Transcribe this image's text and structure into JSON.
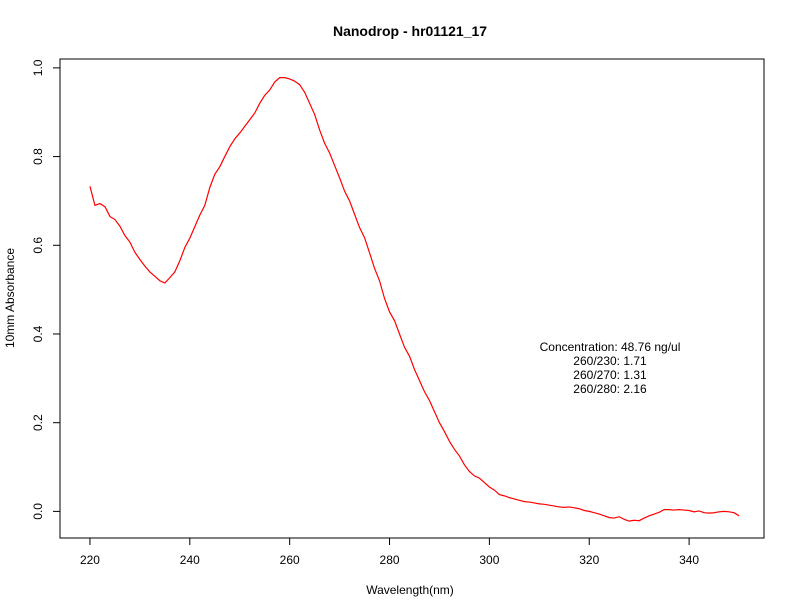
{
  "chart_data": {
    "type": "line",
    "title": "Nanodrop - hr01121_17",
    "xlabel": "Wavelength(nm)",
    "ylabel": "10mm Absorbance",
    "xlim": [
      214,
      355
    ],
    "ylim": [
      -0.06,
      1.02
    ],
    "x_ticks": [
      220,
      240,
      260,
      280,
      300,
      320,
      340
    ],
    "y_ticks": [
      0.0,
      0.2,
      0.4,
      0.6,
      0.8,
      1.0
    ],
    "x_tick_labels": [
      "220",
      "240",
      "260",
      "280",
      "300",
      "320",
      "340"
    ],
    "y_tick_labels": [
      "0.0",
      "0.2",
      "0.4",
      "0.6",
      "0.8",
      "1.0"
    ],
    "grid": false,
    "series": [
      {
        "color": "#ff0000",
        "x": [
          220,
          221,
          222,
          223,
          224,
          225,
          226,
          227,
          228,
          229,
          230,
          231,
          232,
          233,
          234,
          235,
          236,
          237,
          238,
          239,
          240,
          241,
          242,
          243,
          244,
          245,
          246,
          247,
          248,
          249,
          250,
          251,
          252,
          253,
          254,
          255,
          256,
          257,
          258,
          259,
          260,
          261,
          262,
          263,
          264,
          265,
          266,
          267,
          268,
          269,
          270,
          271,
          272,
          273,
          274,
          275,
          276,
          277,
          278,
          279,
          280,
          281,
          282,
          283,
          284,
          285,
          286,
          287,
          288,
          289,
          290,
          291,
          292,
          293,
          294,
          295,
          296,
          297,
          298,
          299,
          300,
          301,
          302,
          303,
          304,
          305,
          306,
          307,
          308,
          309,
          310,
          311,
          312,
          313,
          314,
          315,
          316,
          317,
          318,
          319,
          320,
          321,
          322,
          323,
          324,
          325,
          326,
          327,
          328,
          329,
          330,
          331,
          332,
          333,
          334,
          335,
          336,
          337,
          338,
          339,
          340,
          341,
          342,
          343,
          344,
          345,
          346,
          347,
          348,
          349,
          350
        ],
        "values": [
          0.733,
          0.69,
          0.694,
          0.687,
          0.665,
          0.658,
          0.643,
          0.622,
          0.607,
          0.584,
          0.568,
          0.553,
          0.54,
          0.53,
          0.52,
          0.515,
          0.527,
          0.54,
          0.565,
          0.595,
          0.616,
          0.642,
          0.668,
          0.69,
          0.73,
          0.76,
          0.777,
          0.8,
          0.822,
          0.84,
          0.853,
          0.868,
          0.883,
          0.898,
          0.92,
          0.938,
          0.95,
          0.968,
          0.978,
          0.978,
          0.975,
          0.97,
          0.962,
          0.945,
          0.92,
          0.895,
          0.86,
          0.83,
          0.808,
          0.78,
          0.752,
          0.722,
          0.7,
          0.67,
          0.64,
          0.617,
          0.583,
          0.548,
          0.52,
          0.48,
          0.45,
          0.43,
          0.4,
          0.37,
          0.35,
          0.32,
          0.295,
          0.27,
          0.25,
          0.225,
          0.2,
          0.18,
          0.158,
          0.14,
          0.125,
          0.105,
          0.09,
          0.08,
          0.075,
          0.065,
          0.055,
          0.048,
          0.038,
          0.035,
          0.031,
          0.028,
          0.025,
          0.022,
          0.021,
          0.019,
          0.017,
          0.016,
          0.014,
          0.012,
          0.01,
          0.009,
          0.01,
          0.008,
          0.006,
          0.002,
          0.0,
          -0.003,
          -0.006,
          -0.01,
          -0.014,
          -0.015,
          -0.012,
          -0.018,
          -0.022,
          -0.02,
          -0.021,
          -0.015,
          -0.01,
          -0.006,
          -0.002,
          0.004,
          0.004,
          0.003,
          0.004,
          0.003,
          0.002,
          -0.001,
          0.001,
          -0.003,
          -0.004,
          -0.003,
          -0.001,
          0.0,
          -0.001,
          -0.003,
          -0.01
        ]
      }
    ],
    "annotations": [
      "Concentration: 48.76 ng/ul",
      "260/230: 1.71",
      "260/270: 1.31",
      "260/280: 2.16"
    ]
  }
}
